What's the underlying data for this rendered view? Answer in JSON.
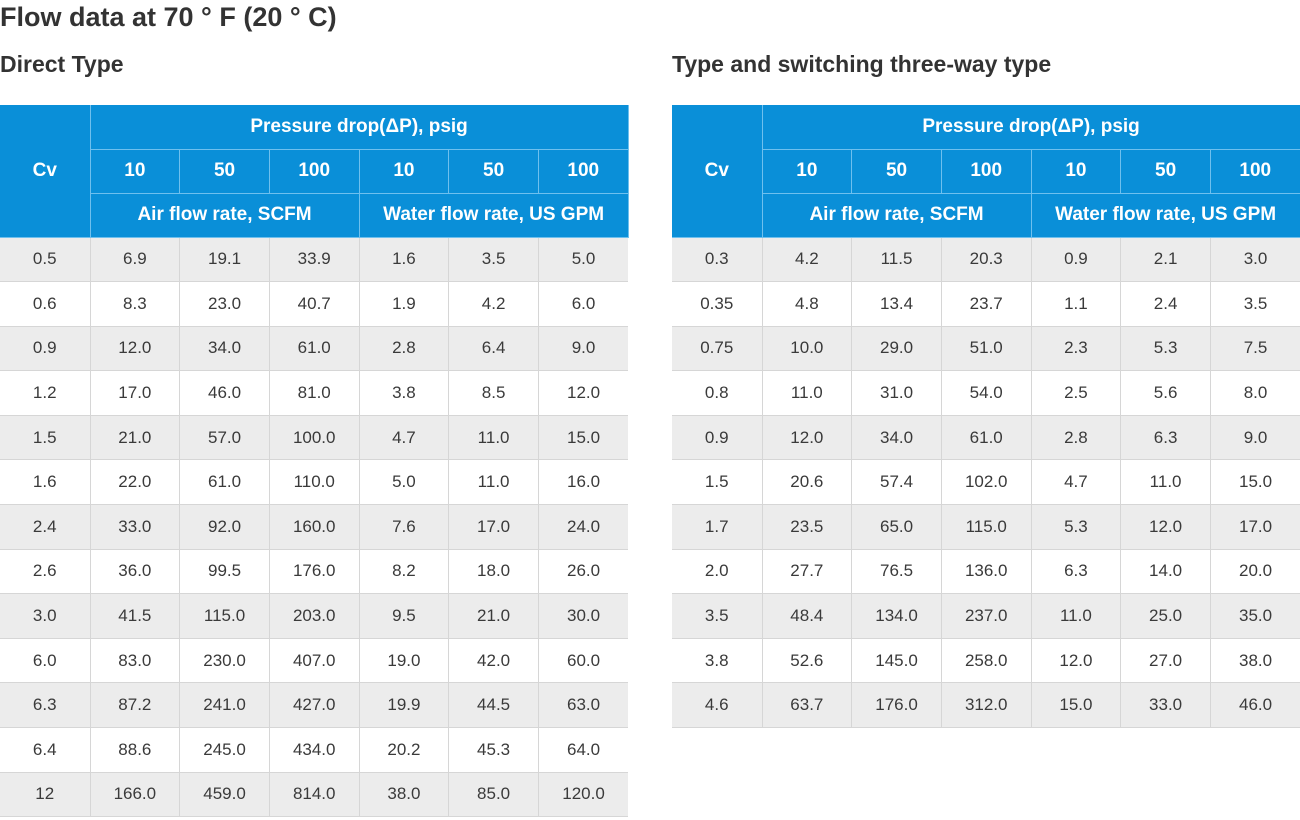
{
  "title": "Flow data at 70 ° F (20 ° C)",
  "tables": [
    {
      "section_title": "Direct Type",
      "header": {
        "cv": "Cv",
        "pressure_drop": "Pressure drop(ΔP), psig",
        "pressures": [
          "10",
          "50",
          "100",
          "10",
          "50",
          "100"
        ],
        "air_flow": "Air flow rate, SCFM",
        "water_flow": "Water flow rate, US GPM"
      },
      "rows": [
        [
          "0.5",
          "6.9",
          "19.1",
          "33.9",
          "1.6",
          "3.5",
          "5.0"
        ],
        [
          "0.6",
          "8.3",
          "23.0",
          "40.7",
          "1.9",
          "4.2",
          "6.0"
        ],
        [
          "0.9",
          "12.0",
          "34.0",
          "61.0",
          "2.8",
          "6.4",
          "9.0"
        ],
        [
          "1.2",
          "17.0",
          "46.0",
          "81.0",
          "3.8",
          "8.5",
          "12.0"
        ],
        [
          "1.5",
          "21.0",
          "57.0",
          "100.0",
          "4.7",
          "11.0",
          "15.0"
        ],
        [
          "1.6",
          "22.0",
          "61.0",
          "110.0",
          "5.0",
          "11.0",
          "16.0"
        ],
        [
          "2.4",
          "33.0",
          "92.0",
          "160.0",
          "7.6",
          "17.0",
          "24.0"
        ],
        [
          "2.6",
          "36.0",
          "99.5",
          "176.0",
          "8.2",
          "18.0",
          "26.0"
        ],
        [
          "3.0",
          "41.5",
          "115.0",
          "203.0",
          "9.5",
          "21.0",
          "30.0"
        ],
        [
          "6.0",
          "83.0",
          "230.0",
          "407.0",
          "19.0",
          "42.0",
          "60.0"
        ],
        [
          "6.3",
          "87.2",
          "241.0",
          "427.0",
          "19.9",
          "44.5",
          "63.0"
        ],
        [
          "6.4",
          "88.6",
          "245.0",
          "434.0",
          "20.2",
          "45.3",
          "64.0"
        ],
        [
          "12",
          "166.0",
          "459.0",
          "814.0",
          "38.0",
          "85.0",
          "120.0"
        ]
      ]
    },
    {
      "section_title": "Type and switching three-way type",
      "header": {
        "cv": "Cv",
        "pressure_drop": "Pressure drop(ΔP), psig",
        "pressures": [
          "10",
          "50",
          "100",
          "10",
          "50",
          "100"
        ],
        "air_flow": "Air flow rate, SCFM",
        "water_flow": "Water flow rate, US GPM"
      },
      "rows": [
        [
          "0.3",
          "4.2",
          "11.5",
          "20.3",
          "0.9",
          "2.1",
          "3.0"
        ],
        [
          "0.35",
          "4.8",
          "13.4",
          "23.7",
          "1.1",
          "2.4",
          "3.5"
        ],
        [
          "0.75",
          "10.0",
          "29.0",
          "51.0",
          "2.3",
          "5.3",
          "7.5"
        ],
        [
          "0.8",
          "11.0",
          "31.0",
          "54.0",
          "2.5",
          "5.6",
          "8.0"
        ],
        [
          "0.9",
          "12.0",
          "34.0",
          "61.0",
          "2.8",
          "6.3",
          "9.0"
        ],
        [
          "1.5",
          "20.6",
          "57.4",
          "102.0",
          "4.7",
          "11.0",
          "15.0"
        ],
        [
          "1.7",
          "23.5",
          "65.0",
          "115.0",
          "5.3",
          "12.0",
          "17.0"
        ],
        [
          "2.0",
          "27.7",
          "76.5",
          "136.0",
          "6.3",
          "14.0",
          "20.0"
        ],
        [
          "3.5",
          "48.4",
          "134.0",
          "237.0",
          "11.0",
          "25.0",
          "35.0"
        ],
        [
          "3.8",
          "52.6",
          "145.0",
          "258.0",
          "12.0",
          "27.0",
          "38.0"
        ],
        [
          "4.6",
          "63.7",
          "176.0",
          "312.0",
          "15.0",
          "33.0",
          "46.0"
        ]
      ]
    }
  ]
}
